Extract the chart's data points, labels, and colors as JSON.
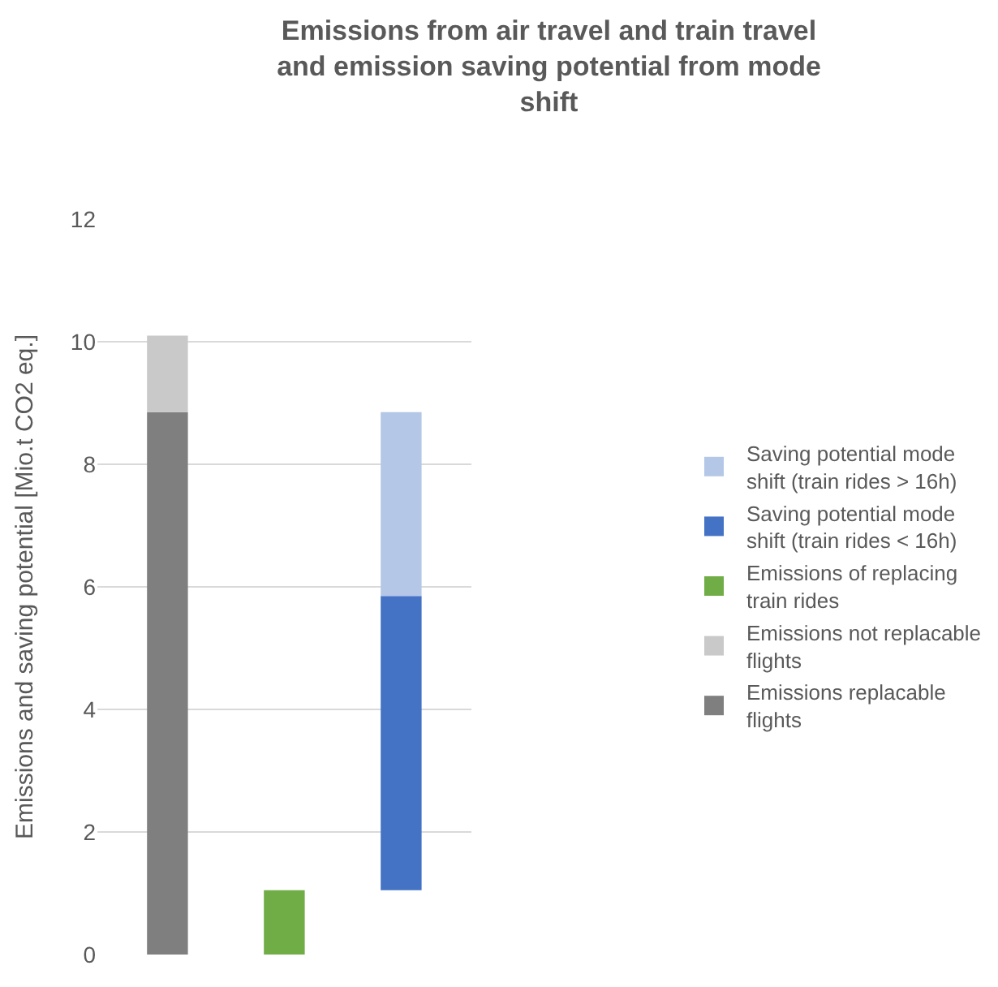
{
  "chart_data": {
    "type": "bar",
    "stacked": true,
    "title": "Emissions from air travel and train travel and emission saving potential from mode shift",
    "ylabel": "Emissions and saving potential [Mio.t CO2 eq.]",
    "categories": [
      null,
      null,
      null
    ],
    "series": [
      {
        "name": "Emissions replacable flights",
        "color": "#7f7f7f",
        "values": [
          8.85,
          null,
          null
        ]
      },
      {
        "name": "Emissions not replacable flights",
        "color": "#c9c9c9",
        "values": [
          1.25,
          null,
          null
        ]
      },
      {
        "name": "Emissions of replacing train rides",
        "color": "#70ad47",
        "values": [
          null,
          1.05,
          null
        ]
      },
      {
        "name": "Saving potential mode shift (train rides < 16h)",
        "color": "#4472c4",
        "base": [
          null,
          null,
          1.05
        ],
        "values": [
          null,
          null,
          4.8
        ]
      },
      {
        "name": "Saving potential mode shift (train rides > 16h)",
        "color": "#b4c7e7",
        "values": [
          null,
          null,
          3.0
        ]
      }
    ],
    "ylim": [
      0,
      12
    ],
    "yticks": [
      0,
      2,
      4,
      6,
      8,
      10,
      12
    ],
    "grid": "y",
    "legend": "right"
  }
}
